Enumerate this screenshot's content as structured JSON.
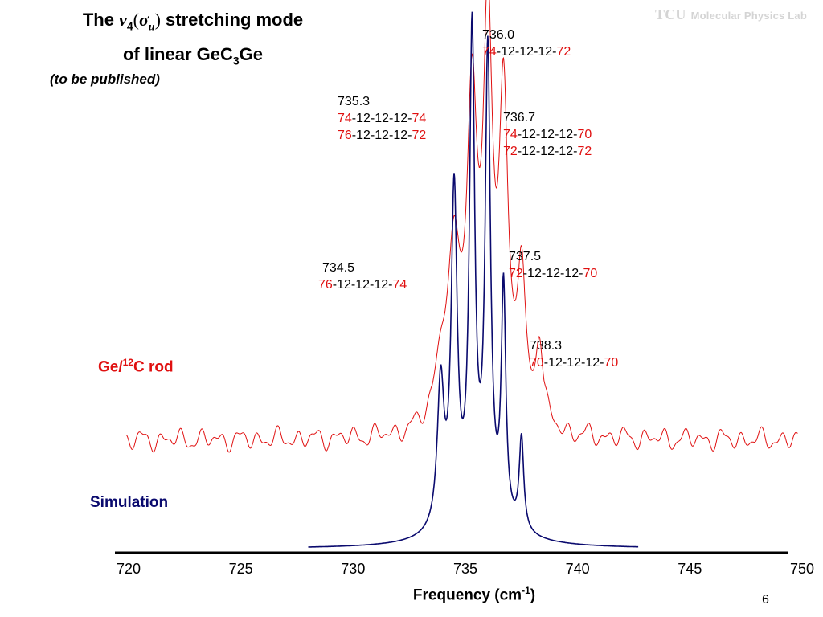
{
  "header": {
    "title_prefix": "The ",
    "title_nu": "ν",
    "title_nu_sub": "4",
    "title_open": "(",
    "title_sigma": "σ",
    "title_sigma_sub": "u",
    "title_close": ")",
    "title_rest": " stretching mode",
    "title_line2_pre": "of linear  GeC",
    "title_line2_sub": "3",
    "title_line2_post": "Ge",
    "subtitle": "(to be published)",
    "logo_mark": "TCU",
    "logo_text": "Molecular Physics Lab"
  },
  "page_number": "6",
  "colors": {
    "experiment": "#e01010",
    "simulation": "#0a0a6e",
    "isotope_mass_highlight": "#e01010",
    "axis": "#000000"
  },
  "labels": {
    "experiment_pre": "Ge/",
    "experiment_sup": "12",
    "experiment_post": "C rod",
    "simulation": "Simulation"
  },
  "annotations": [
    {
      "freq": "736.0",
      "lines": [
        {
          "a": "74",
          "mid": "-12-12-12-",
          "b": "72"
        }
      ]
    },
    {
      "freq": "735.3",
      "lines": [
        {
          "a": "74",
          "mid": "-12-12-12-",
          "b": "74"
        },
        {
          "a": "76",
          "mid": "-12-12-12-",
          "b": "72"
        }
      ]
    },
    {
      "freq": "736.7",
      "lines": [
        {
          "a": "74",
          "mid": "-12-12-12-",
          "b": "70"
        },
        {
          "a": "72",
          "mid": "-12-12-12-",
          "b": "72"
        }
      ]
    },
    {
      "freq": "734.5",
      "lines": [
        {
          "a": "76",
          "mid": "-12-12-12-",
          "b": "74"
        }
      ]
    },
    {
      "freq": "737.5",
      "lines": [
        {
          "a": "72",
          "mid": "-12-12-12-",
          "b": "70"
        }
      ]
    },
    {
      "freq": "738.3",
      "lines": [
        {
          "a": "70",
          "mid": "-12-12-12-",
          "b": "70"
        }
      ]
    }
  ],
  "chart_data": {
    "type": "line",
    "xlabel_pre": "Frequency (cm",
    "xlabel_sup": "-1",
    "xlabel_post": ")",
    "ylabel": "",
    "xlim": [
      720,
      750
    ],
    "xticks": [
      "720",
      "725",
      "730",
      "735",
      "740",
      "745",
      "750"
    ],
    "grid": false,
    "series": [
      {
        "name": "Ge/12C rod",
        "peaks": [
          {
            "x": 733.9,
            "h": 0.12,
            "w": 0.35
          },
          {
            "x": 734.5,
            "h": 0.36,
            "w": 0.33
          },
          {
            "x": 735.3,
            "h": 0.68,
            "w": 0.28
          },
          {
            "x": 736.0,
            "h": 0.85,
            "w": 0.24
          },
          {
            "x": 736.7,
            "h": 0.7,
            "w": 0.24
          },
          {
            "x": 737.5,
            "h": 0.33,
            "w": 0.22
          },
          {
            "x": 738.3,
            "h": 0.18,
            "w": 0.2
          }
        ],
        "baseline_noise": 0.06
      },
      {
        "name": "Simulation",
        "x_range": [
          728.0,
          742.7
        ],
        "peaks": [
          {
            "x": 733.9,
            "h": 0.28,
            "w": 0.18
          },
          {
            "x": 734.5,
            "h": 0.64,
            "w": 0.16
          },
          {
            "x": 735.3,
            "h": 0.93,
            "w": 0.14
          },
          {
            "x": 736.0,
            "h": 0.89,
            "w": 0.14
          },
          {
            "x": 736.7,
            "h": 0.45,
            "w": 0.12
          },
          {
            "x": 737.5,
            "h": 0.18,
            "w": 0.12
          }
        ],
        "broad_wing": 0.28
      }
    ]
  }
}
